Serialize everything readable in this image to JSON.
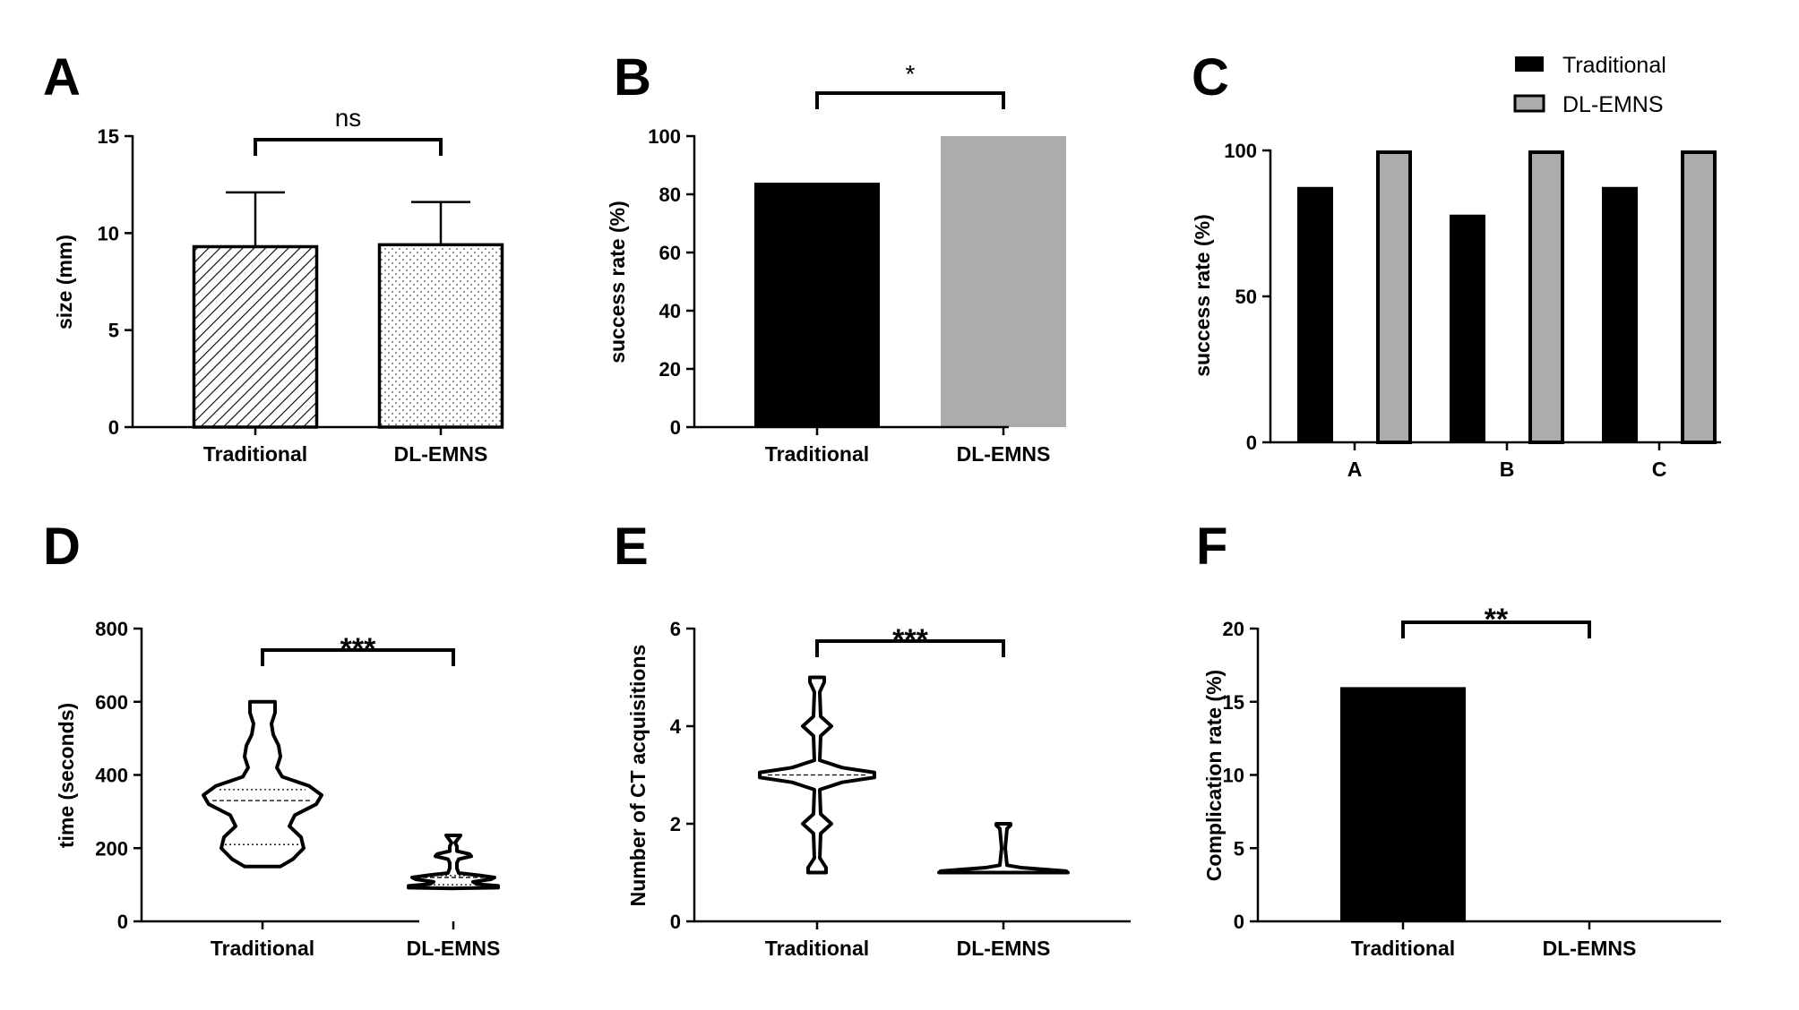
{
  "chart_data": [
    {
      "panel": "A",
      "type": "bar",
      "categories": [
        "Traditional",
        "DL-EMNS"
      ],
      "values": [
        9.3,
        9.4
      ],
      "errors": [
        2.8,
        2.2
      ],
      "ylabel": "size (mm)",
      "ylim": [
        0,
        15
      ],
      "yticks": [
        "0",
        "5",
        "10",
        "15"
      ],
      "significance": "ns",
      "fills": [
        "hatch",
        "dots"
      ]
    },
    {
      "panel": "B",
      "type": "bar",
      "categories": [
        "Traditional",
        "DL-EMNS"
      ],
      "values": [
        84,
        100
      ],
      "ylabel": "success rate (%)",
      "ylim": [
        0,
        100
      ],
      "yticks": [
        "0",
        "20",
        "40",
        "60",
        "80",
        "100"
      ],
      "significance": "*",
      "colors": [
        "#000000",
        "#acacac"
      ]
    },
    {
      "panel": "C",
      "type": "bar",
      "categories": [
        "A",
        "B",
        "C"
      ],
      "series": [
        {
          "name": "Traditional",
          "values": [
            87.5,
            78,
            87.5
          ],
          "color": "#000000"
        },
        {
          "name": "DL-EMNS",
          "values": [
            100,
            100,
            100
          ],
          "color": "#acacac"
        }
      ],
      "ylabel": "success rate (%)",
      "ylim": [
        0,
        100
      ],
      "yticks": [
        "0",
        "50",
        "100"
      ],
      "legend": "top-right"
    },
    {
      "panel": "D",
      "type": "violin",
      "categories": [
        "Traditional",
        "DL-EMNS"
      ],
      "ylabel": "time (seconds)",
      "ylim": [
        0,
        800
      ],
      "yticks": [
        "0",
        "200",
        "400",
        "600",
        "800"
      ],
      "significance": "***",
      "violins": [
        {
          "min": 150,
          "max": 600,
          "median": 330,
          "q1": 210,
          "q3": 360
        },
        {
          "min": 90,
          "max": 235,
          "median": 120,
          "q1": 100,
          "q3": 125
        }
      ]
    },
    {
      "panel": "E",
      "type": "violin",
      "categories": [
        "Traditional",
        "DL-EMNS"
      ],
      "ylabel": "Number of CT acquisitions",
      "ylim": [
        0,
        6
      ],
      "yticks": [
        "0",
        "2",
        "4",
        "6"
      ],
      "significance": "***",
      "violins": [
        {
          "min": 1,
          "max": 5,
          "median": 3,
          "q1": 2.95,
          "q3": 3.05
        },
        {
          "min": 1,
          "max": 2,
          "median": 1,
          "q1": 1,
          "q3": 1
        }
      ]
    },
    {
      "panel": "F",
      "type": "bar",
      "categories": [
        "Traditional",
        "DL-EMNS"
      ],
      "values": [
        16,
        0
      ],
      "ylabel": "Complication rate (%)",
      "ylim": [
        0,
        20
      ],
      "yticks": [
        "0",
        "5",
        "10",
        "15",
        "20"
      ],
      "significance": "**",
      "colors": [
        "#000000",
        "#000000"
      ]
    }
  ]
}
